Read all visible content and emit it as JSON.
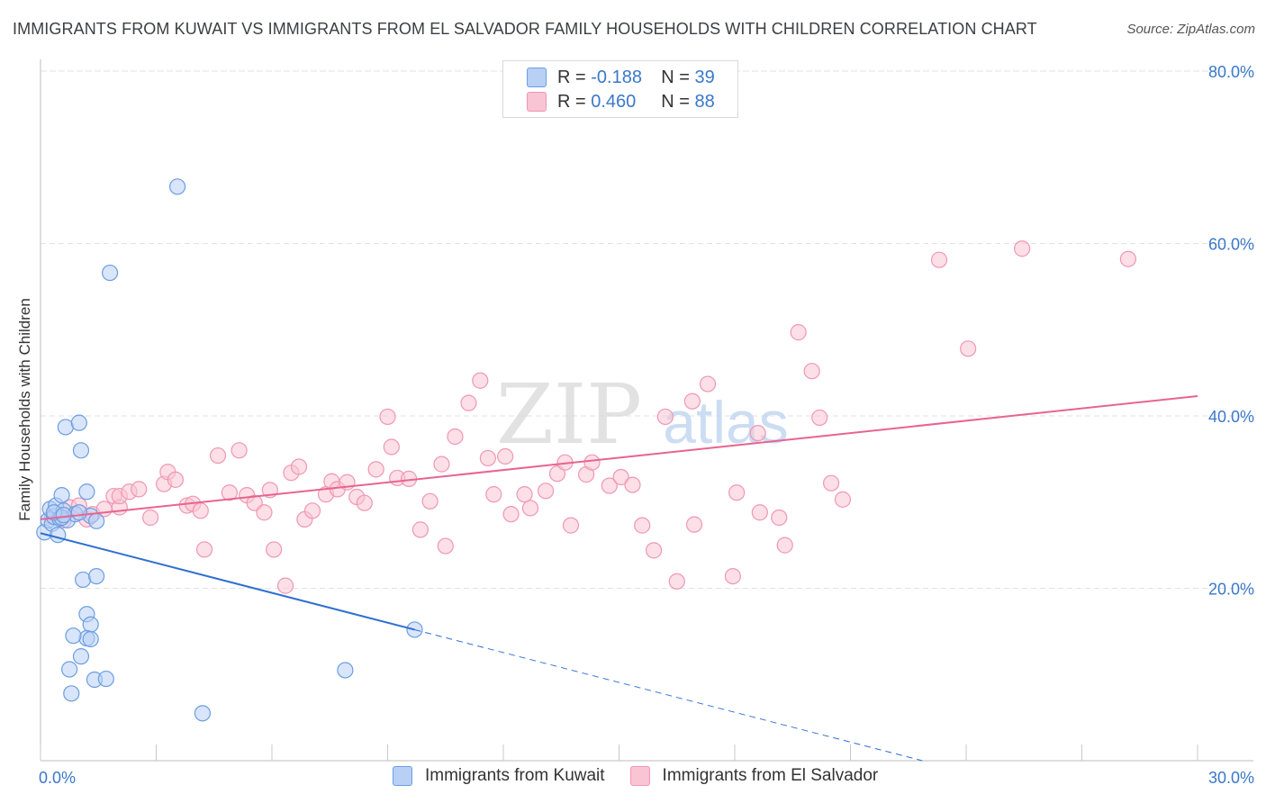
{
  "title": "IMMIGRANTS FROM KUWAIT VS IMMIGRANTS FROM EL SALVADOR FAMILY HOUSEHOLDS WITH CHILDREN CORRELATION CHART",
  "source": "Source: ZipAtlas.com",
  "watermark": {
    "part1": "ZIP",
    "part2": "atlas"
  },
  "legend": {
    "r_label": "R =",
    "n_label": "N =",
    "kuwait": {
      "r": "-0.188",
      "n": "39"
    },
    "salvador": {
      "r": "0.460",
      "n": "88"
    }
  },
  "colors": {
    "kuwait_fill": "#b8d0f5",
    "kuwait_stroke": "#6c9ee0",
    "kuwait_line": "#2f6fd1",
    "salvador_fill": "#f9c4d4",
    "salvador_stroke": "#ef97b4",
    "salvador_line": "#e8648f",
    "tick_label": "#3a78c9",
    "grid": "#e2e2e2"
  },
  "chart_data": {
    "type": "scatter",
    "title": "IMMIGRANTS FROM KUWAIT VS IMMIGRANTS FROM EL SALVADOR FAMILY HOUSEHOLDS WITH CHILDREN CORRELATION CHART",
    "xlabel": "",
    "ylabel": "Family Households with Children",
    "xlim": [
      0,
      30
    ],
    "ylim": [
      0,
      80
    ],
    "x_tick_labels": [
      {
        "value": 0,
        "label": "0.0%"
      },
      {
        "value": 30,
        "label": "30.0%"
      }
    ],
    "y_tick_labels": [
      {
        "value": 20,
        "label": "20.0%"
      },
      {
        "value": 40,
        "label": "40.0%"
      },
      {
        "value": 60,
        "label": "60.0%"
      },
      {
        "value": 80,
        "label": "80.0%"
      }
    ],
    "series": [
      {
        "name": "Immigrants from Kuwait",
        "points": [
          [
            0.1,
            26.5
          ],
          [
            0.2,
            27.9
          ],
          [
            0.25,
            29.2
          ],
          [
            0.3,
            27.5
          ],
          [
            0.35,
            28.3
          ],
          [
            0.4,
            29.6
          ],
          [
            0.45,
            26.2
          ],
          [
            0.5,
            28.1
          ],
          [
            0.55,
            30.8
          ],
          [
            0.6,
            29.0
          ],
          [
            0.7,
            27.9
          ],
          [
            0.65,
            38.7
          ],
          [
            1.0,
            39.2
          ],
          [
            1.05,
            36.0
          ],
          [
            1.2,
            31.2
          ],
          [
            1.3,
            28.4
          ],
          [
            1.45,
            27.8
          ],
          [
            0.9,
            28.6
          ],
          [
            1.0,
            28.8
          ],
          [
            1.1,
            21.0
          ],
          [
            1.45,
            21.4
          ],
          [
            1.2,
            17.0
          ],
          [
            1.3,
            15.8
          ],
          [
            1.2,
            14.2
          ],
          [
            1.3,
            14.1
          ],
          [
            0.85,
            14.5
          ],
          [
            1.05,
            12.1
          ],
          [
            0.75,
            10.6
          ],
          [
            0.8,
            7.8
          ],
          [
            1.4,
            9.4
          ],
          [
            1.7,
            9.5
          ],
          [
            3.55,
            66.6
          ],
          [
            1.8,
            56.6
          ],
          [
            4.2,
            5.5
          ],
          [
            7.9,
            10.5
          ],
          [
            9.7,
            15.2
          ],
          [
            0.55,
            28.2
          ],
          [
            0.35,
            28.8
          ],
          [
            0.6,
            28.5
          ]
        ]
      },
      {
        "name": "Immigrants from El Salvador",
        "points": [
          [
            0.3,
            28.3
          ],
          [
            0.6,
            27.9
          ],
          [
            0.75,
            29.4
          ],
          [
            1.0,
            29.6
          ],
          [
            1.2,
            28.0
          ],
          [
            1.35,
            28.6
          ],
          [
            1.65,
            29.2
          ],
          [
            1.9,
            30.7
          ],
          [
            2.05,
            29.4
          ],
          [
            2.05,
            30.7
          ],
          [
            2.3,
            31.2
          ],
          [
            2.55,
            31.5
          ],
          [
            2.85,
            28.2
          ],
          [
            3.2,
            32.1
          ],
          [
            3.3,
            33.5
          ],
          [
            3.5,
            32.6
          ],
          [
            3.8,
            29.6
          ],
          [
            3.95,
            29.8
          ],
          [
            4.15,
            29.0
          ],
          [
            4.25,
            24.5
          ],
          [
            4.6,
            35.4
          ],
          [
            4.9,
            31.1
          ],
          [
            5.15,
            36.0
          ],
          [
            5.35,
            30.8
          ],
          [
            5.55,
            29.9
          ],
          [
            5.8,
            28.8
          ],
          [
            5.95,
            31.4
          ],
          [
            6.05,
            24.5
          ],
          [
            6.35,
            20.3
          ],
          [
            6.5,
            33.4
          ],
          [
            6.7,
            34.1
          ],
          [
            6.85,
            28.0
          ],
          [
            7.05,
            29.0
          ],
          [
            7.4,
            30.9
          ],
          [
            7.55,
            32.4
          ],
          [
            7.7,
            31.5
          ],
          [
            7.95,
            32.3
          ],
          [
            8.2,
            30.6
          ],
          [
            8.4,
            29.9
          ],
          [
            8.7,
            33.8
          ],
          [
            9.0,
            39.9
          ],
          [
            9.1,
            36.4
          ],
          [
            9.25,
            32.8
          ],
          [
            9.55,
            32.7
          ],
          [
            9.85,
            26.8
          ],
          [
            10.1,
            30.1
          ],
          [
            10.4,
            34.4
          ],
          [
            10.5,
            24.9
          ],
          [
            10.75,
            37.6
          ],
          [
            11.1,
            41.5
          ],
          [
            11.4,
            44.1
          ],
          [
            11.6,
            35.1
          ],
          [
            11.75,
            30.9
          ],
          [
            12.05,
            35.3
          ],
          [
            12.2,
            28.6
          ],
          [
            12.55,
            30.9
          ],
          [
            12.7,
            29.3
          ],
          [
            13.1,
            31.3
          ],
          [
            13.4,
            33.3
          ],
          [
            13.6,
            34.6
          ],
          [
            13.75,
            27.3
          ],
          [
            14.15,
            33.2
          ],
          [
            14.3,
            34.6
          ],
          [
            14.75,
            31.9
          ],
          [
            15.05,
            32.9
          ],
          [
            15.35,
            32.0
          ],
          [
            15.6,
            27.3
          ],
          [
            15.9,
            24.4
          ],
          [
            16.2,
            39.9
          ],
          [
            16.5,
            20.8
          ],
          [
            16.9,
            41.7
          ],
          [
            16.95,
            27.4
          ],
          [
            17.3,
            43.7
          ],
          [
            17.95,
            21.4
          ],
          [
            18.05,
            31.1
          ],
          [
            18.6,
            38.0
          ],
          [
            18.65,
            28.8
          ],
          [
            19.15,
            28.2
          ],
          [
            19.3,
            25.0
          ],
          [
            19.65,
            49.7
          ],
          [
            20.0,
            45.2
          ],
          [
            20.2,
            39.8
          ],
          [
            20.5,
            32.2
          ],
          [
            20.8,
            30.3
          ],
          [
            23.3,
            58.1
          ],
          [
            24.05,
            47.8
          ],
          [
            25.45,
            59.4
          ],
          [
            28.2,
            58.2
          ]
        ]
      }
    ],
    "trend_lines": [
      {
        "name": "Immigrants from Kuwait",
        "x0": 0,
        "y0": 26.4,
        "x1": 9.7,
        "y1": 15.2,
        "dashed_to_x": 30,
        "style": "solid-then-dashed"
      },
      {
        "name": "Immigrants from El Salvador",
        "x0": 0,
        "y0": 28.0,
        "x1": 30,
        "y1": 42.3,
        "style": "solid"
      }
    ],
    "grid": true,
    "legend_position": "top-center"
  },
  "bottom_legend": {
    "kuwait": "Immigrants from Kuwait",
    "salvador": "Immigrants from El Salvador"
  }
}
